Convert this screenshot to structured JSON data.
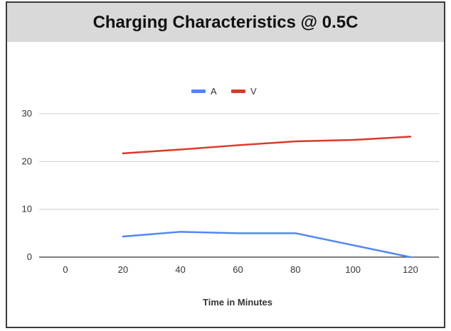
{
  "chart_data": {
    "type": "line",
    "title": "Charging Characteristics @ 0.5C",
    "xlabel": "Time in Minutes",
    "ylabel": "",
    "x": [
      20,
      40,
      60,
      80,
      100,
      120
    ],
    "xticks": [
      "0",
      "20",
      "40",
      "60",
      "80",
      "100",
      "120"
    ],
    "xlim": [
      0,
      120
    ],
    "yticks": [
      "0",
      "10",
      "20",
      "30"
    ],
    "ylim": [
      0,
      30
    ],
    "grid": true,
    "legend_position": "top",
    "series": [
      {
        "name": "A",
        "color": "#4f86f7",
        "values": [
          4.3,
          5.3,
          5.0,
          5.0,
          2.5,
          0.0
        ]
      },
      {
        "name": "V",
        "color": "#d93a2b",
        "values": [
          21.7,
          22.5,
          23.4,
          24.2,
          24.5,
          25.2
        ]
      }
    ]
  }
}
